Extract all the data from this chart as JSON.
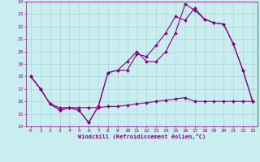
{
  "xlabel": "Windchill (Refroidissement éolien,°C)",
  "xlim": [
    -0.5,
    23.5
  ],
  "ylim": [
    14,
    24
  ],
  "yticks": [
    14,
    15,
    16,
    17,
    18,
    19,
    20,
    21,
    22,
    23,
    24
  ],
  "xticks": [
    0,
    1,
    2,
    3,
    4,
    5,
    6,
    7,
    8,
    9,
    10,
    11,
    12,
    13,
    14,
    15,
    16,
    17,
    18,
    19,
    20,
    21,
    22,
    23
  ],
  "background_color": "#c8eef0",
  "grid_color": "#b0cccc",
  "line_color": "#880088",
  "line1_y": [
    18,
    17,
    15.8,
    15.3,
    15.5,
    15.3,
    14.3,
    15.6,
    18.3,
    18.5,
    18.5,
    19.8,
    19.6,
    20.5,
    21.5,
    22.8,
    22.5,
    23.5,
    22.6,
    22.3,
    22.2,
    20.6,
    18.5,
    16
  ],
  "line2_y": [
    18,
    17,
    15.8,
    15.3,
    15.5,
    15.3,
    14.3,
    15.6,
    18.3,
    18.5,
    19.2,
    20.0,
    19.2,
    19.2,
    20.0,
    21.5,
    23.8,
    23.3,
    22.6,
    22.3,
    22.2,
    20.6,
    18.5,
    16
  ],
  "line3_y": [
    18.0,
    17.0,
    15.8,
    15.5,
    15.5,
    15.5,
    15.5,
    15.5,
    15.6,
    15.6,
    15.7,
    15.8,
    15.9,
    16.0,
    16.1,
    16.2,
    16.3,
    16.0,
    16.0,
    16.0,
    16.0,
    16.0,
    16.0,
    16.0
  ]
}
